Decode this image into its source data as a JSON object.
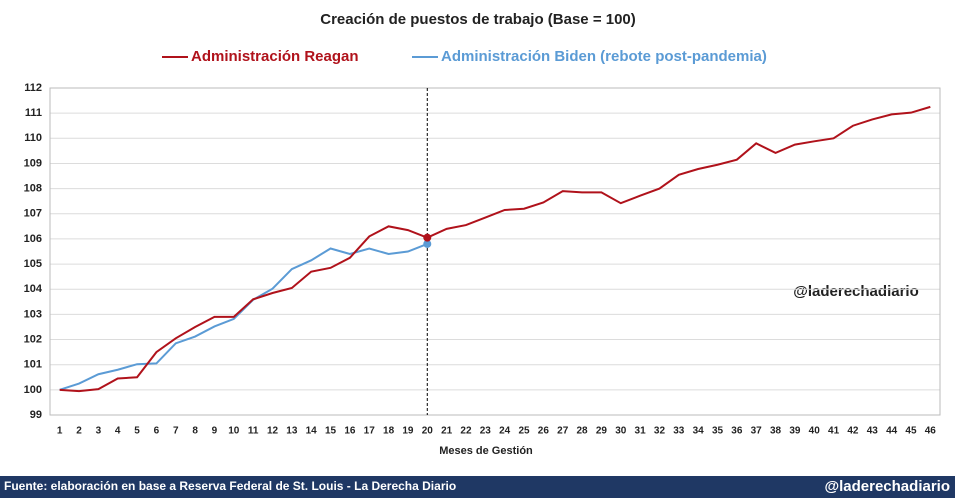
{
  "chart_data": {
    "type": "line",
    "title": "Creación de puestos de trabajo (Base = 100)",
    "x_label": "Meses de Gestión",
    "categories": [
      1,
      2,
      3,
      4,
      5,
      6,
      7,
      8,
      9,
      10,
      11,
      12,
      13,
      14,
      15,
      16,
      17,
      18,
      19,
      20,
      21,
      22,
      23,
      24,
      25,
      26,
      27,
      28,
      29,
      30,
      31,
      32,
      33,
      34,
      35,
      36,
      37,
      38,
      39,
      40,
      41,
      42,
      43,
      44,
      45,
      46
    ],
    "series": [
      {
        "name": "Administración Reagan",
        "color": "#b0121b",
        "values": [
          100,
          99.95,
          100.03,
          100.45,
          100.5,
          101.5,
          102.05,
          102.5,
          102.9,
          102.9,
          103.6,
          103.85,
          104.05,
          104.7,
          104.85,
          105.25,
          106.1,
          106.5,
          106.35,
          106.05,
          106.4,
          106.55,
          106.85,
          107.15,
          107.2,
          107.45,
          107.9,
          107.85,
          107.85,
          107.42,
          107.72,
          108.0,
          108.55,
          108.78,
          108.95,
          109.15,
          109.8,
          109.42,
          109.75,
          109.88,
          110.0,
          110.5,
          110.75,
          110.95,
          111.02,
          111.25
        ]
      },
      {
        "name": "Administración Biden (rebote post-pandemia)",
        "color": "#5b9bd5",
        "values": [
          100,
          100.25,
          100.62,
          100.8,
          101.02,
          101.05,
          101.85,
          102.12,
          102.52,
          102.82,
          103.58,
          104.02,
          104.8,
          105.15,
          105.62,
          105.4,
          105.62,
          105.4,
          105.5,
          105.8,
          null,
          null,
          null,
          null,
          null,
          null,
          null,
          null,
          null,
          null,
          null,
          null,
          null,
          null,
          null,
          null,
          null,
          null,
          null,
          null,
          null,
          null,
          null,
          null,
          null,
          null
        ]
      }
    ],
    "ylim": [
      99,
      112
    ],
    "yticks": [
      99,
      100,
      101,
      102,
      103,
      104,
      105,
      106,
      107,
      108,
      109,
      110,
      111,
      112
    ],
    "grid": true,
    "reference_line": 20,
    "watermark": "@laderechadiario",
    "source": "Fuente: elaboración en base a Reserva Federal de St. Louis - La Derecha Diario",
    "footer_handle": "@laderechadiario"
  }
}
